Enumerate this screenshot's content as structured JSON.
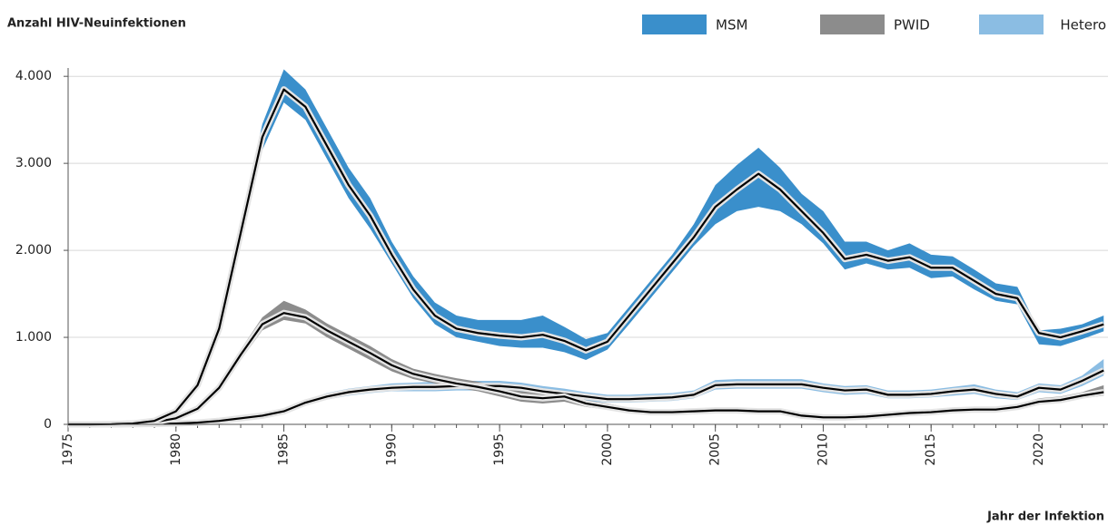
{
  "chart_data": {
    "type": "band-line",
    "title": "Anzahl HIV-Neuinfektionen",
    "x_label": "Jahr der Infektion",
    "x": [
      1975,
      1976,
      1977,
      1978,
      1979,
      1980,
      1981,
      1982,
      1983,
      1984,
      1985,
      1986,
      1987,
      1988,
      1989,
      1990,
      1991,
      1992,
      1993,
      1994,
      1995,
      1996,
      1997,
      1998,
      1999,
      2000,
      2001,
      2002,
      2003,
      2004,
      2005,
      2006,
      2007,
      2008,
      2009,
      2010,
      2011,
      2012,
      2013,
      2014,
      2015,
      2016,
      2017,
      2018,
      2019,
      2020,
      2021,
      2022,
      2023
    ],
    "xlim": [
      1975,
      2023.2
    ],
    "xticks": [
      1975,
      1980,
      1985,
      1990,
      1995,
      2000,
      2005,
      2010,
      2015,
      2020
    ],
    "ylim": [
      0,
      4200
    ],
    "yticks": [
      0,
      {
        "value": 1000,
        "label": "1.000"
      },
      {
        "value": 2000,
        "label": "2.000"
      },
      {
        "value": 3000,
        "label": "3.000"
      },
      {
        "value": 4000,
        "label": "4.000"
      }
    ],
    "grid": true,
    "line_color": "#000000",
    "series": [
      {
        "name": "MSM",
        "color": "#3a8fcb",
        "values": [
          0,
          0,
          2,
          10,
          40,
          150,
          450,
          1100,
          2200,
          3300,
          3850,
          3650,
          3200,
          2750,
          2400,
          1950,
          1550,
          1250,
          1100,
          1050,
          1020,
          1000,
          1030,
          960,
          850,
          950,
          1250,
          1550,
          1850,
          2150,
          2500,
          2700,
          2880,
          2700,
          2450,
          2200,
          1900,
          1950,
          1880,
          1920,
          1800,
          1800,
          1650,
          1500,
          1450,
          1050,
          1000,
          1070,
          1150
        ],
        "lower": [
          0,
          0,
          2,
          9,
          38,
          145,
          430,
          1060,
          2100,
          3150,
          3700,
          3500,
          3050,
          2600,
          2250,
          1850,
          1450,
          1150,
          1000,
          950,
          900,
          880,
          880,
          830,
          740,
          860,
          1150,
          1450,
          1750,
          2050,
          2300,
          2450,
          2500,
          2450,
          2300,
          2080,
          1780,
          1850,
          1780,
          1800,
          1680,
          1700,
          1550,
          1420,
          1380,
          920,
          900,
          980,
          1070
        ],
        "upper": [
          0,
          0,
          2,
          11,
          42,
          155,
          470,
          1140,
          2300,
          3450,
          4080,
          3850,
          3400,
          2950,
          2600,
          2100,
          1700,
          1400,
          1250,
          1200,
          1200,
          1200,
          1250,
          1120,
          980,
          1050,
          1350,
          1650,
          1950,
          2300,
          2750,
          2980,
          3180,
          2950,
          2650,
          2450,
          2100,
          2100,
          2000,
          2080,
          1950,
          1930,
          1780,
          1620,
          1580,
          1080,
          1100,
          1150,
          1250
        ]
      },
      {
        "name": "PWID",
        "color": "#8c8c8c",
        "values": [
          0,
          0,
          2,
          8,
          25,
          70,
          180,
          420,
          800,
          1150,
          1280,
          1230,
          1080,
          950,
          820,
          680,
          580,
          520,
          470,
          430,
          380,
          320,
          300,
          320,
          240,
          200,
          160,
          140,
          140,
          150,
          160,
          160,
          150,
          150,
          100,
          80,
          80,
          90,
          110,
          130,
          140,
          160,
          170,
          170,
          200,
          260,
          280,
          330,
          370
        ],
        "lower": [
          0,
          0,
          2,
          7,
          22,
          62,
          160,
          380,
          740,
          1080,
          1200,
          1160,
          1000,
          870,
          740,
          610,
          520,
          470,
          420,
          380,
          320,
          260,
          240,
          260,
          200,
          170,
          140,
          120,
          120,
          130,
          140,
          140,
          130,
          130,
          85,
          70,
          70,
          75,
          95,
          110,
          120,
          140,
          150,
          150,
          180,
          230,
          250,
          300,
          330
        ],
        "upper": [
          0,
          0,
          2,
          9,
          28,
          78,
          200,
          460,
          860,
          1230,
          1420,
          1320,
          1160,
          1030,
          900,
          750,
          640,
          580,
          530,
          490,
          440,
          380,
          360,
          380,
          280,
          240,
          190,
          170,
          170,
          180,
          190,
          190,
          175,
          175,
          120,
          95,
          95,
          110,
          130,
          150,
          165,
          185,
          195,
          200,
          230,
          300,
          320,
          370,
          450
        ]
      },
      {
        "name": "Hetero",
        "color": "#8bbde3",
        "values": [
          0,
          0,
          0,
          2,
          5,
          10,
          20,
          40,
          70,
          100,
          150,
          250,
          320,
          370,
          400,
          420,
          430,
          430,
          440,
          440,
          440,
          420,
          380,
          350,
          320,
          290,
          290,
          300,
          310,
          340,
          450,
          460,
          460,
          460,
          460,
          420,
          390,
          400,
          340,
          340,
          350,
          380,
          400,
          350,
          320,
          420,
          400,
          500,
          620
        ],
        "lower": [
          0,
          0,
          0,
          2,
          4,
          8,
          17,
          34,
          62,
          88,
          130,
          220,
          285,
          330,
          360,
          380,
          380,
          380,
          390,
          390,
          390,
          360,
          320,
          300,
          270,
          250,
          250,
          260,
          270,
          300,
          400,
          410,
          410,
          410,
          410,
          370,
          340,
          350,
          300,
          300,
          310,
          330,
          350,
          300,
          280,
          370,
          350,
          440,
          560
        ],
        "upper": [
          0,
          0,
          0,
          2,
          6,
          12,
          23,
          46,
          80,
          112,
          170,
          280,
          360,
          410,
          440,
          470,
          480,
          490,
          500,
          500,
          500,
          480,
          440,
          410,
          370,
          340,
          340,
          350,
          360,
          390,
          510,
          520,
          520,
          520,
          520,
          470,
          440,
          450,
          390,
          390,
          400,
          430,
          460,
          400,
          370,
          470,
          450,
          560,
          750
        ]
      }
    ]
  }
}
